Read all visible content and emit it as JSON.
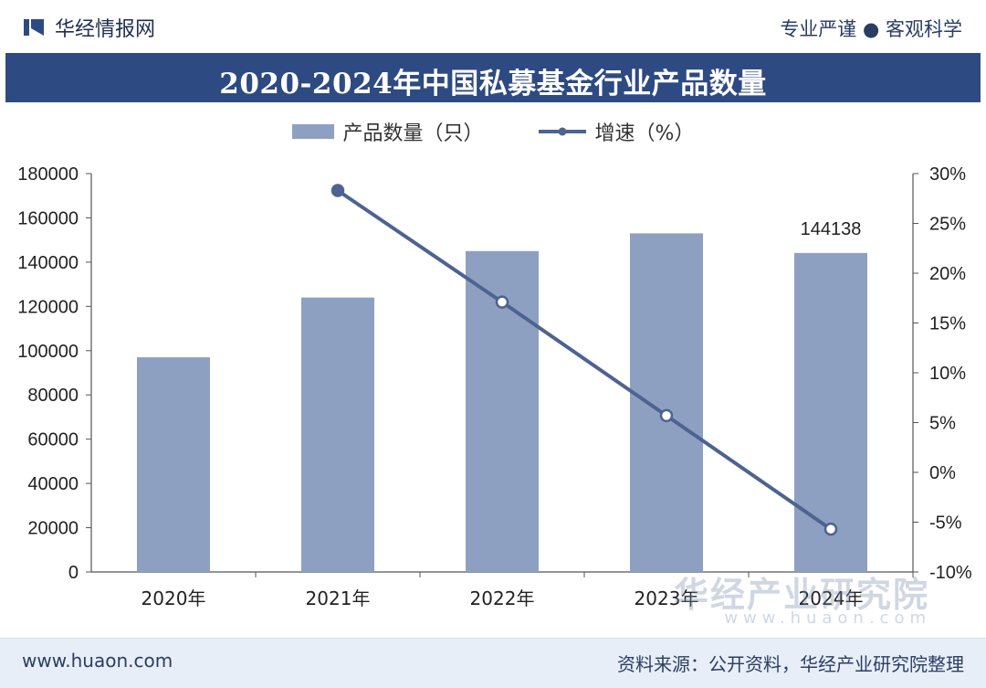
{
  "header": {
    "logo_text": "华经情报网",
    "slogan": "专业严谨 ● 客观科学"
  },
  "chart_data": {
    "type": "bar",
    "title": "2020-2024年中国私募基金行业产品数量",
    "categories": [
      "2020年",
      "2021年",
      "2022年",
      "2023年",
      "2024年"
    ],
    "series": [
      {
        "name": "产品数量（只）",
        "type": "bar",
        "axis": "left",
        "values": [
          97000,
          124000,
          145000,
          153000,
          144138
        ]
      },
      {
        "name": "增速（%）",
        "type": "line",
        "axis": "right",
        "values": [
          null,
          28.3,
          17.1,
          5.7,
          -5.7
        ]
      }
    ],
    "y_left": {
      "min": 0,
      "max": 180000,
      "step": 20000,
      "ticks": [
        "0",
        "20000",
        "40000",
        "60000",
        "80000",
        "100000",
        "120000",
        "140000",
        "160000",
        "180000"
      ]
    },
    "y_right": {
      "min": -10,
      "max": 30,
      "step": 5,
      "ticks": [
        "-10%",
        "-5%",
        "0%",
        "5%",
        "10%",
        "15%",
        "20%",
        "25%",
        "30%"
      ]
    },
    "data_labels": [
      {
        "category": "2024年",
        "text": "144138"
      }
    ],
    "colors": {
      "bar": "#8ea0c2",
      "line": "#4d6390",
      "marker_fill": "#ffffff"
    }
  },
  "watermark": {
    "text": "华经产业研究院",
    "url_text": "www.huaon.com"
  },
  "footer": {
    "website": "www.huaon.com",
    "source": "资料来源：公开资料，华经产业研究院整理"
  }
}
